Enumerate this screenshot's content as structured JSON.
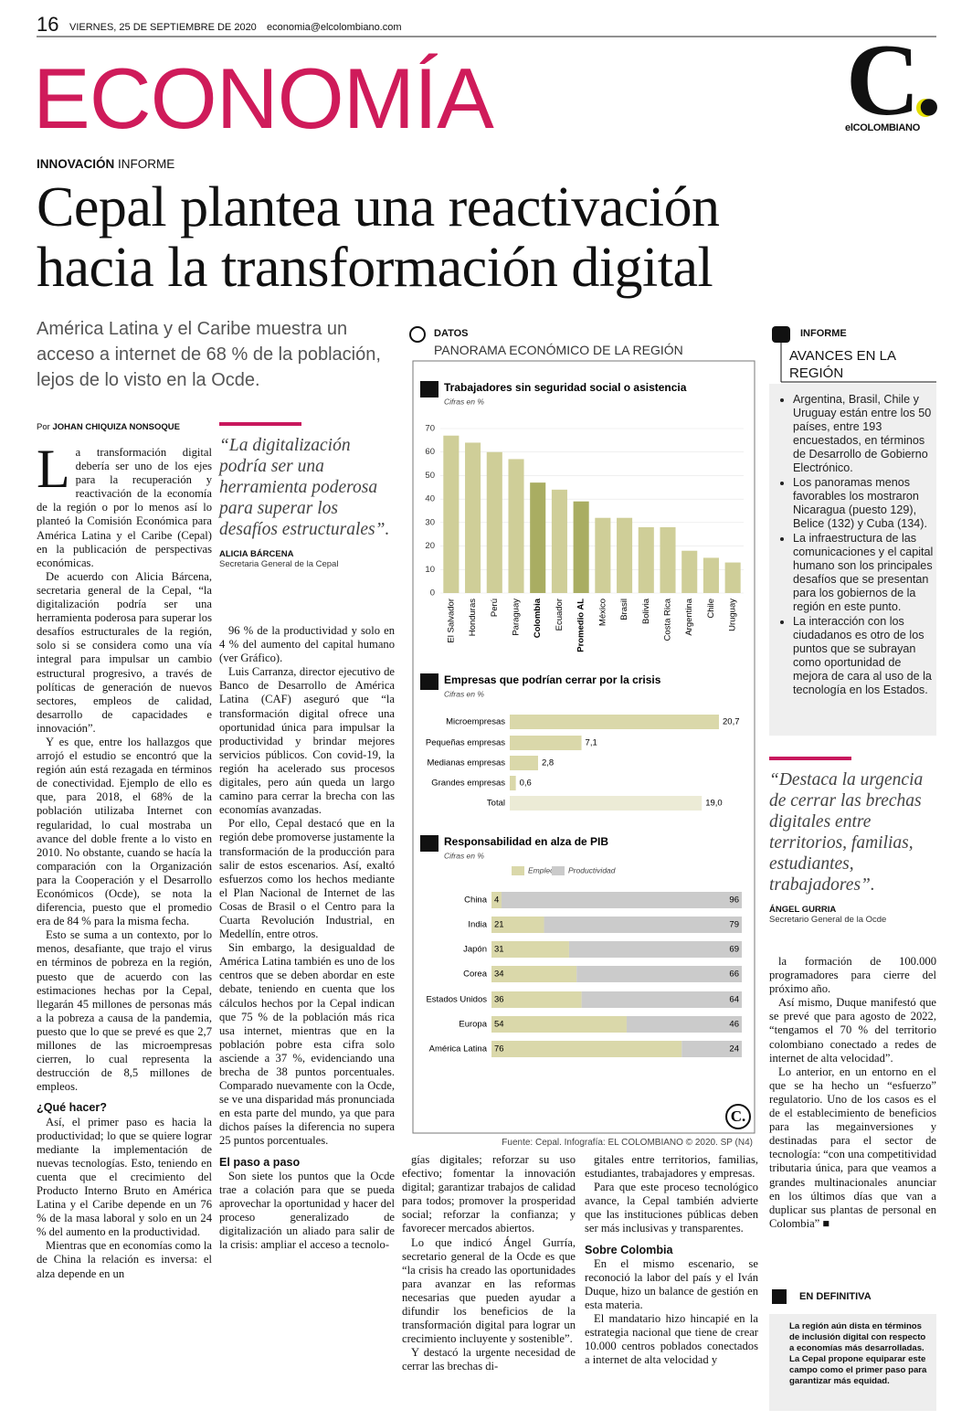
{
  "header": {
    "page": "16",
    "date": "VIERNES, 25 DE SEPTIEMBRE DE 2020",
    "email": "economia@elcolombiano.com",
    "section": "ECONOMÍA",
    "logo": "C.",
    "logo_name": "elCOLOMBIANO"
  },
  "article": {
    "kicker": "INNOVACIÓN",
    "kicker_type": "INFORME",
    "headline": [
      "Cepal plantea una reactivación",
      "hacia la transformación digital"
    ],
    "deck": "América Latina y el Caribe muestra un acceso a internet de 68 % de la población, lejos de lo visto en la Ocde.",
    "byline_prefix": "Por",
    "byline": "JOHAN CHIQUIZA NONSOQUE",
    "columns": [
      [
        {
          "p": "La transformación digital debería ser uno de los ejes para la recuperación y reactivación de la economía de la región o por lo menos así lo planteó la Comisión Económica para América Latina y el Caribe (Cepal) en la publicación de perspectivas económicas."
        },
        {
          "p": "De acuerdo con Alicia Bárcena, secretaria general de la Cepal, “la digitalización podría ser una herramienta poderosa para superar los desafíos estructurales de la región, solo si se considera como una vía integral para impulsar un cambio estructural progresivo, a través de políticas de generación de nuevos sectores, empleos de calidad, desarrollo de capacidades e innovación”."
        },
        {
          "p": "Y es que, entre los hallazgos que arrojó el estudio se encontró que la región aún está rezagada en términos de conectividad. Ejemplo de ello es que, para 2018, el 68% de la población utilizaba Internet con regularidad, lo cual mostraba un avance del doble frente a lo visto en 2010. No obstante, cuando se hacía la comparación con la Organización para la Cooperación y el Desarrollo Económicos (Ocde), se nota la diferencia, puesto que el promedio era de 84 % para la misma fecha."
        },
        {
          "p": "Esto se suma a un contexto, por lo menos, desafiante, que trajo el virus en términos de pobreza en la región, puesto que de acuerdo con las estimaciones hechas por la Cepal, llegarán 45 millones de personas más a la pobreza a causa de la pandemia, puesto que lo que se prevé es que 2,7 millones de las microempresas cierren, lo cual representa la destrucción de 8,5 millones de empleos."
        },
        {
          "h": "¿Qué hacer?"
        },
        {
          "p": "Así, el primer paso es hacia la productividad; lo que se quiere lograr mediante la implementación de nuevas tecnologías. Esto, teniendo en cuenta que el crecimiento del Producto Interno Bruto en América Latina y el Caribe depende en un 76 % de la masa laboral y solo en un 24 % del aumento en la productividad."
        },
        {
          "p": "Mientras que en economías como la de China la relación es inversa: el alza depende en un"
        }
      ],
      [
        {
          "p": "96 % de la productividad y solo en 4 % del aumento del capital humano (ver Gráfico)."
        },
        {
          "p": "Luis Carranza, director ejecutivo de Banco de Desarrollo de América Latina (CAF) aseguró que “la transformación digital ofrece una oportunidad única para impulsar la productividad y brindar mejores servicios públicos. Con covid-19, la región ha acelerado sus procesos digitales, pero aún queda un largo camino para cerrar la brecha con las economías avanzadas."
        },
        {
          "p": "Por ello, Cepal destacó que en la región debe promoverse justamente la transformación de la producción para salir de estos escenarios. Así, exaltó esfuerzos como los hechos mediante el Plan Nacional de Internet de las Cosas de Brasil o el Centro para la Cuarta Revolución Industrial, en Medellín, entre otros."
        },
        {
          "p": "Sin embargo, la desigualdad de América Latina también es uno de los centros que se deben abordar en este debate, teniendo en cuenta que los cálculos hechos por la Cepal indican que 75 % de la población más rica usa internet, mientras que en la población pobre esta cifra solo asciende a 37 %, evidenciando una brecha de 38 puntos porcentuales. Comparado nuevamente con la Ocde, se ve una disparidad más pronunciada en esta parte del mundo, ya que para dichos países la diferencia no supera 25 puntos porcentuales."
        },
        {
          "h": "El paso a paso"
        },
        {
          "p": "Son siete los puntos que la Ocde trae a colación para que se pueda aprovechar la oportunidad y hacer del proceso generalizado de digitalización un aliado para salir de la crisis: ampliar el acceso a tecnolo-"
        }
      ],
      [
        {
          "p": "gías digitales; reforzar su uso efectivo; fomentar la innovación digital; garantizar trabajos de calidad para todos; promover la prosperidad social; reforzar la confianza; y favorecer mercados abiertos."
        },
        {
          "p": "Lo que indicó Ángel Gurría, secretario general de la Ocde es que “la crisis ha creado las oportunidades para avanzar en las reformas necesarias que pueden ayudar a difundir los beneficios de la transformación digital para lograr un crecimiento incluyente y sostenible”."
        },
        {
          "p": "Y destacó la urgente necesidad de cerrar las brechas di-"
        }
      ],
      [
        {
          "p": "gitales entre territorios, familias, estudiantes, trabajadores y empresas."
        },
        {
          "p": "Para que este proceso tecnológico avance, la Cepal también advierte que las instituciones públicas deben ser más inclusivas y transparentes."
        },
        {
          "h": "Sobre Colombia"
        },
        {
          "p": "En el mismo escenario, se reconoció la labor del país y el Iván Duque, hizo un balance de gestión en esta materia."
        },
        {
          "p": "El mandatario hizo hincapié en la estrategia nacional que tiene de crear 10.000 centros poblados conectados a internet de alta velocidad y"
        }
      ],
      [
        {
          "p": "la formación de 100.000 programadores para cierre del próximo año."
        },
        {
          "p": "Así mismo, Duque manifestó que se prevé que para agosto de 2022, “tengamos el 70 % del territorio colombiano conectado a redes de internet de alta velocidad”."
        },
        {
          "p": "Lo anterior, en un entorno en el que se ha hecho un “esfuerzo” regulatorio. Uno de los casos es el de el establecimiento de beneficios para las megainversiones y destinadas para el sector de tecnología: “con una competitividad tributaria única, para que veamos a grandes multinacionales anunciar en los últimos días que van a duplicar sus plantas de personal en Colombia” ■"
        }
      ]
    ],
    "quotes": [
      {
        "text": "“La digitalización podría ser una herramienta poderosa para superar los desafíos estructurales”.",
        "author": "ALICIA BÁRCENA",
        "role": "Secretaria General de la Cepal"
      },
      {
        "text": "“Destaca la urgencia de cerrar las brechas digitales entre territorios, familias, estudiantes, trabajadores”.",
        "author": "ÁNGEL GURRIA",
        "role": "Secretario General de la Ocde"
      }
    ]
  },
  "sidebar": {
    "label": "INFORME",
    "title": "AVANCES EN LA REGIÓN",
    "items": [
      "Argentina, Brasil, Chile y Uruguay están entre los 50 países, entre 193 encuestados, en términos de Desarrollo de Gobierno Electrónico.",
      "Los panoramas menos favorables los mostraron Nicaragua (puesto 129), Belice (132) y Cuba (134).",
      "La infraestructura de las comunicaciones y el capital humano son los principales desafíos que se presentan para los gobiernos de la región en este punto.",
      "La interacción con los ciudadanos es otro de los puntos que se subrayan como oportunidad de mejora de cara al uso de la tecnología en los Estados."
    ]
  },
  "summary": {
    "label": "EN DEFINITIVA",
    "text": "La región aún dista en términos de inclusión digital con respecto a economías más desarrolladas. La Cepal propone equiparar este campo como el primer paso para garantizar más equidad."
  },
  "infographic": {
    "label": "DATOS",
    "title": "PANORAMA ECONÓMICO DE LA REGIÓN",
    "source": "Fuente: Cepal. Infografía: EL COLOMBIANO © 2020. SP (N4)"
  },
  "chart_data": [
    {
      "type": "bar",
      "title": "Trabajadores sin seguridad social o asistencia",
      "subtitle": "Cifras en %",
      "categories": [
        "El Salvador",
        "Honduras",
        "Perú",
        "Paraguay",
        "Colombia",
        "Ecuador",
        "Promedio AL",
        "México",
        "Brasil",
        "Bolivia",
        "Costa Rica",
        "Argentina",
        "Chile",
        "Uruguay"
      ],
      "values": [
        67,
        64,
        60,
        57,
        47,
        44,
        39,
        32,
        32,
        28,
        28,
        18,
        15,
        13
      ],
      "color": "#cfce98",
      "colors": [
        "#cfce98",
        "#cfce98",
        "#cfce98",
        "#cfce98",
        "#a9ad62",
        "#cfce98",
        "#a9ad62",
        "#cfce98",
        "#cfce98",
        "#cfce98",
        "#cfce98",
        "#cfce98",
        "#cfce98",
        "#cfce98"
      ],
      "ylim": [
        0,
        70
      ],
      "yticks": [
        0,
        10,
        20,
        30,
        40,
        50,
        60,
        70
      ]
    },
    {
      "type": "hbar",
      "title": "Empresas que podrían cerrar por la crisis",
      "subtitle": "Cifras en %",
      "categories": [
        "Microempresas",
        "Pequeñas empresas",
        "Medianas empresas",
        "Grandes empresas",
        "Total"
      ],
      "values": [
        20.7,
        7.1,
        2.8,
        0.6,
        19.0
      ],
      "value_labels": [
        "20,7",
        "7,1",
        "2,8",
        "0,6",
        "19,0"
      ],
      "colors": [
        "#dad8aa",
        "#dad8aa",
        "#dad8aa",
        "#dad8aa",
        "#ecebd6"
      ]
    },
    {
      "type": "stacked_hbar",
      "title": "Responsabilidad en alza de PIB",
      "subtitle": "Cifras en %",
      "categories": [
        "China",
        "India",
        "Japón",
        "Corea",
        "Estados Unidos",
        "Europa",
        "América Latina"
      ],
      "series": [
        {
          "name": "Empleo",
          "color": "#dad8aa",
          "values": [
            4,
            21,
            31,
            34,
            36,
            54,
            76
          ]
        },
        {
          "name": "Productividad",
          "color": "#cbcbcb",
          "values": [
            96,
            79,
            69,
            66,
            64,
            46,
            24
          ]
        }
      ]
    }
  ]
}
